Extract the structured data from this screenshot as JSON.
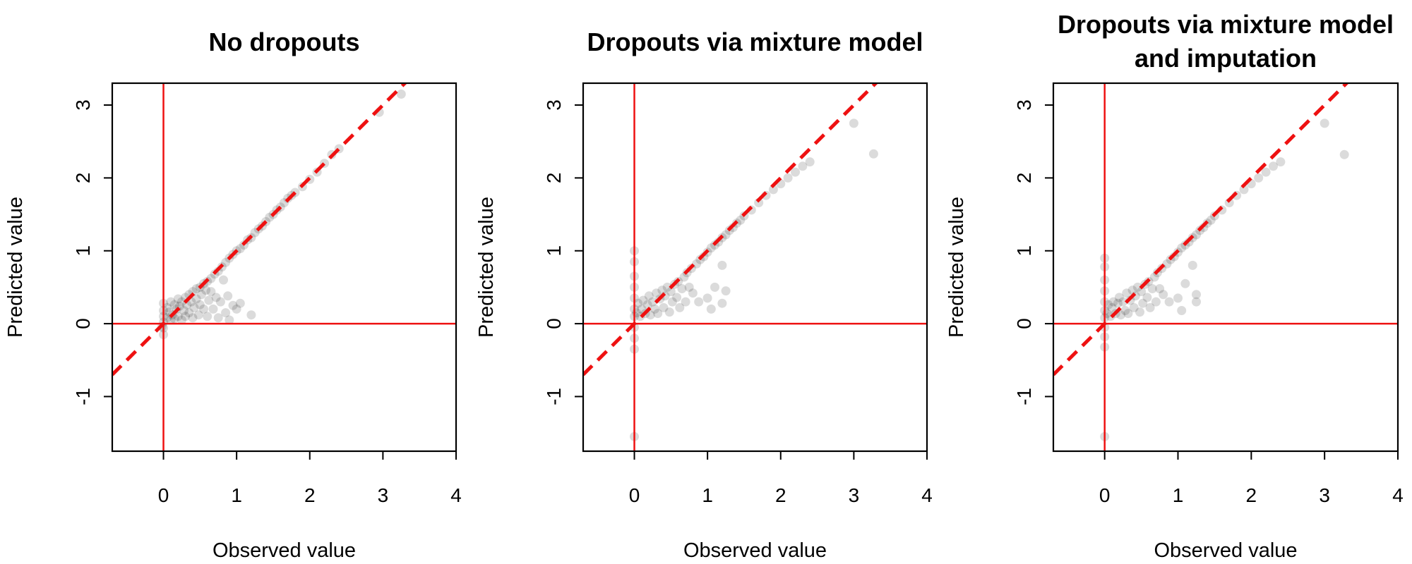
{
  "figure": {
    "colors": {
      "reference_line": "#ee1111",
      "identity_line": "#ee1111",
      "points": "#000000",
      "frame": "#000000"
    }
  },
  "chart_data": [
    {
      "type": "scatter",
      "title": [
        "No dropouts"
      ],
      "xlabel": "Observed value",
      "ylabel": "Predicted value",
      "xlim": [
        -0.7,
        4.0
      ],
      "ylim": [
        -1.75,
        3.3
      ],
      "xticks": [
        0,
        1,
        2,
        3,
        4
      ],
      "yticks": [
        -1,
        0,
        1,
        2,
        3
      ],
      "reference_lines": {
        "vertical_x": 0,
        "horizontal_y": 0,
        "identity": "y = x (dashed)"
      },
      "grid": false,
      "legend": "none",
      "series": [
        {
          "points": [
            [
              0.0,
              0.1
            ],
            [
              0.0,
              0.28
            ],
            [
              0.0,
              0.02
            ],
            [
              0.0,
              -0.06
            ],
            [
              0.0,
              0.18
            ],
            [
              -0.02,
              -0.04
            ],
            [
              0.0,
              -0.15
            ],
            [
              0.05,
              0.08
            ],
            [
              0.05,
              0.22
            ],
            [
              0.08,
              0.16
            ],
            [
              0.1,
              0.05
            ],
            [
              0.1,
              0.3
            ],
            [
              0.12,
              0.12
            ],
            [
              0.15,
              0.26
            ],
            [
              0.15,
              0.07
            ],
            [
              0.18,
              0.2
            ],
            [
              0.2,
              0.1
            ],
            [
              0.2,
              0.34
            ],
            [
              0.22,
              0.24
            ],
            [
              0.25,
              0.05
            ],
            [
              0.25,
              0.3
            ],
            [
              0.28,
              0.18
            ],
            [
              0.3,
              0.36
            ],
            [
              0.3,
              0.1
            ],
            [
              0.32,
              0.26
            ],
            [
              0.35,
              0.4
            ],
            [
              0.35,
              0.15
            ],
            [
              0.38,
              0.3
            ],
            [
              0.4,
              0.44
            ],
            [
              0.4,
              0.08
            ],
            [
              0.42,
              0.22
            ],
            [
              0.45,
              0.48
            ],
            [
              0.45,
              0.34
            ],
            [
              0.48,
              0.12
            ],
            [
              0.5,
              0.5
            ],
            [
              0.5,
              0.26
            ],
            [
              0.52,
              0.4
            ],
            [
              0.55,
              0.55
            ],
            [
              0.55,
              0.2
            ],
            [
              0.58,
              0.46
            ],
            [
              0.6,
              0.58
            ],
            [
              0.6,
              0.1
            ],
            [
              0.62,
              0.32
            ],
            [
              0.65,
              0.62
            ],
            [
              0.65,
              0.44
            ],
            [
              0.68,
              0.2
            ],
            [
              0.7,
              0.68
            ],
            [
              0.72,
              0.36
            ],
            [
              0.75,
              0.72
            ],
            [
              0.78,
              0.3
            ],
            [
              0.8,
              0.78
            ],
            [
              0.82,
              0.6
            ],
            [
              0.85,
              0.84
            ],
            [
              0.88,
              0.38
            ],
            [
              0.9,
              0.9
            ],
            [
              0.95,
              0.95
            ],
            [
              0.95,
              0.25
            ],
            [
              1.0,
              1.0
            ],
            [
              1.05,
              1.03
            ],
            [
              1.1,
              1.08
            ],
            [
              1.15,
              1.15
            ],
            [
              1.2,
              1.18
            ],
            [
              1.25,
              1.25
            ],
            [
              1.3,
              1.3
            ],
            [
              1.35,
              1.34
            ],
            [
              1.4,
              1.4
            ],
            [
              1.45,
              1.46
            ],
            [
              1.5,
              1.5
            ],
            [
              1.55,
              1.56
            ],
            [
              1.6,
              1.6
            ],
            [
              1.65,
              1.66
            ],
            [
              1.7,
              1.72
            ],
            [
              1.75,
              1.76
            ],
            [
              1.8,
              1.8
            ],
            [
              1.9,
              1.88
            ],
            [
              2.0,
              1.98
            ],
            [
              2.1,
              2.08
            ],
            [
              2.2,
              2.2
            ],
            [
              2.3,
              2.32
            ],
            [
              2.4,
              2.4
            ],
            [
              0.75,
              0.08
            ],
            [
              0.85,
              0.15
            ],
            [
              1.05,
              0.28
            ],
            [
              1.2,
              0.12
            ],
            [
              0.9,
              0.05
            ],
            [
              1.0,
              0.2
            ],
            [
              3.25,
              3.15
            ],
            [
              2.95,
              2.9
            ]
          ]
        }
      ]
    },
    {
      "type": "scatter",
      "title": [
        "Dropouts via mixture model"
      ],
      "xlabel": "Observed value",
      "ylabel": "Predicted value",
      "xlim": [
        -0.7,
        4.0
      ],
      "ylim": [
        -1.75,
        3.3
      ],
      "xticks": [
        0,
        1,
        2,
        3,
        4
      ],
      "yticks": [
        -1,
        0,
        1,
        2,
        3
      ],
      "reference_lines": {
        "vertical_x": 0,
        "horizontal_y": 0,
        "identity": "y = x (dashed)"
      },
      "grid": false,
      "legend": "none",
      "series": [
        {
          "points": [
            [
              0.0,
              1.0
            ],
            [
              0.0,
              0.85
            ],
            [
              0.0,
              0.65
            ],
            [
              0.0,
              0.5
            ],
            [
              0.0,
              0.35
            ],
            [
              0.0,
              0.2
            ],
            [
              0.0,
              0.1
            ],
            [
              0.0,
              -0.05
            ],
            [
              0.0,
              -0.2
            ],
            [
              0.0,
              -0.35
            ],
            [
              0.0,
              -1.55
            ],
            [
              0.03,
              0.15
            ],
            [
              0.05,
              0.28
            ],
            [
              0.08,
              0.1
            ],
            [
              0.1,
              0.2
            ],
            [
              0.12,
              0.32
            ],
            [
              0.15,
              0.14
            ],
            [
              0.18,
              0.26
            ],
            [
              0.2,
              0.38
            ],
            [
              0.22,
              0.12
            ],
            [
              0.25,
              0.3
            ],
            [
              0.28,
              0.2
            ],
            [
              0.3,
              0.42
            ],
            [
              0.32,
              0.14
            ],
            [
              0.35,
              0.34
            ],
            [
              0.38,
              0.46
            ],
            [
              0.4,
              0.22
            ],
            [
              0.42,
              0.38
            ],
            [
              0.45,
              0.5
            ],
            [
              0.48,
              0.16
            ],
            [
              0.5,
              0.44
            ],
            [
              0.52,
              0.3
            ],
            [
              0.55,
              0.54
            ],
            [
              0.58,
              0.36
            ],
            [
              0.6,
              0.58
            ],
            [
              0.62,
              0.22
            ],
            [
              0.65,
              0.48
            ],
            [
              0.68,
              0.64
            ],
            [
              0.7,
              0.3
            ],
            [
              0.72,
              0.7
            ],
            [
              0.75,
              0.5
            ],
            [
              0.78,
              0.76
            ],
            [
              0.8,
              0.42
            ],
            [
              0.85,
              0.82
            ],
            [
              0.88,
              0.3
            ],
            [
              0.9,
              0.88
            ],
            [
              0.95,
              0.92
            ],
            [
              1.0,
              0.98
            ],
            [
              1.05,
              1.04
            ],
            [
              1.1,
              1.08
            ],
            [
              1.15,
              1.12
            ],
            [
              1.2,
              1.18
            ],
            [
              1.25,
              1.22
            ],
            [
              1.3,
              1.28
            ],
            [
              1.35,
              1.32
            ],
            [
              1.4,
              1.38
            ],
            [
              1.45,
              1.42
            ],
            [
              1.5,
              1.48
            ],
            [
              1.6,
              1.56
            ],
            [
              1.7,
              1.66
            ],
            [
              1.8,
              1.76
            ],
            [
              1.9,
              1.84
            ],
            [
              2.0,
              1.92
            ],
            [
              2.1,
              2.0
            ],
            [
              2.2,
              2.08
            ],
            [
              2.3,
              2.16
            ],
            [
              2.4,
              2.22
            ],
            [
              1.2,
              0.8
            ],
            [
              1.1,
              0.5
            ],
            [
              1.25,
              0.45
            ],
            [
              1.2,
              0.28
            ],
            [
              1.0,
              0.35
            ],
            [
              1.05,
              0.2
            ],
            [
              3.0,
              2.75
            ],
            [
              3.27,
              2.33
            ]
          ]
        }
      ]
    },
    {
      "type": "scatter",
      "title": [
        "Dropouts via mixture model",
        "and imputation"
      ],
      "xlabel": "Observed value",
      "ylabel": "Predicted value",
      "xlim": [
        -0.7,
        4.0
      ],
      "ylim": [
        -1.75,
        3.3
      ],
      "xticks": [
        0,
        1,
        2,
        3,
        4
      ],
      "yticks": [
        -1,
        0,
        1,
        2,
        3
      ],
      "reference_lines": {
        "vertical_x": 0,
        "horizontal_y": 0,
        "identity": "y = x (dashed)"
      },
      "grid": false,
      "legend": "none",
      "series": [
        {
          "points": [
            [
              0.0,
              0.9
            ],
            [
              0.0,
              0.78
            ],
            [
              0.0,
              0.6
            ],
            [
              0.0,
              0.45
            ],
            [
              0.0,
              0.3
            ],
            [
              0.0,
              0.18
            ],
            [
              0.0,
              0.08
            ],
            [
              0.0,
              -0.05
            ],
            [
              0.0,
              -0.18
            ],
            [
              0.0,
              -0.32
            ],
            [
              0.0,
              -1.55
            ],
            [
              0.03,
              0.14
            ],
            [
              0.05,
              0.26
            ],
            [
              0.08,
              0.1
            ],
            [
              0.1,
              0.22
            ],
            [
              0.12,
              0.3
            ],
            [
              0.15,
              0.14
            ],
            [
              0.18,
              0.28
            ],
            [
              0.2,
              0.36
            ],
            [
              0.22,
              0.12
            ],
            [
              0.25,
              0.3
            ],
            [
              0.28,
              0.18
            ],
            [
              0.3,
              0.42
            ],
            [
              0.32,
              0.14
            ],
            [
              0.35,
              0.32
            ],
            [
              0.38,
              0.46
            ],
            [
              0.4,
              0.22
            ],
            [
              0.42,
              0.38
            ],
            [
              0.45,
              0.5
            ],
            [
              0.48,
              0.16
            ],
            [
              0.5,
              0.44
            ],
            [
              0.52,
              0.28
            ],
            [
              0.55,
              0.54
            ],
            [
              0.58,
              0.36
            ],
            [
              0.6,
              0.58
            ],
            [
              0.62,
              0.22
            ],
            [
              0.65,
              0.48
            ],
            [
              0.68,
              0.64
            ],
            [
              0.7,
              0.3
            ],
            [
              0.72,
              0.7
            ],
            [
              0.75,
              0.48
            ],
            [
              0.78,
              0.76
            ],
            [
              0.8,
              0.4
            ],
            [
              0.85,
              0.82
            ],
            [
              0.88,
              0.3
            ],
            [
              0.9,
              0.88
            ],
            [
              0.95,
              0.92
            ],
            [
              1.0,
              0.98
            ],
            [
              1.05,
              1.04
            ],
            [
              1.1,
              1.08
            ],
            [
              1.15,
              1.12
            ],
            [
              1.2,
              1.18
            ],
            [
              1.25,
              1.22
            ],
            [
              1.3,
              1.28
            ],
            [
              1.35,
              1.32
            ],
            [
              1.4,
              1.38
            ],
            [
              1.45,
              1.42
            ],
            [
              1.5,
              1.48
            ],
            [
              1.6,
              1.56
            ],
            [
              1.7,
              1.66
            ],
            [
              1.8,
              1.76
            ],
            [
              1.9,
              1.84
            ],
            [
              2.0,
              1.92
            ],
            [
              2.1,
              2.0
            ],
            [
              2.2,
              2.08
            ],
            [
              2.3,
              2.16
            ],
            [
              2.4,
              2.22
            ],
            [
              1.2,
              0.8
            ],
            [
              1.1,
              0.55
            ],
            [
              1.25,
              0.4
            ],
            [
              1.25,
              0.3
            ],
            [
              1.0,
              0.35
            ],
            [
              1.05,
              0.18
            ],
            [
              3.0,
              2.75
            ],
            [
              3.27,
              2.32
            ]
          ]
        }
      ]
    }
  ]
}
